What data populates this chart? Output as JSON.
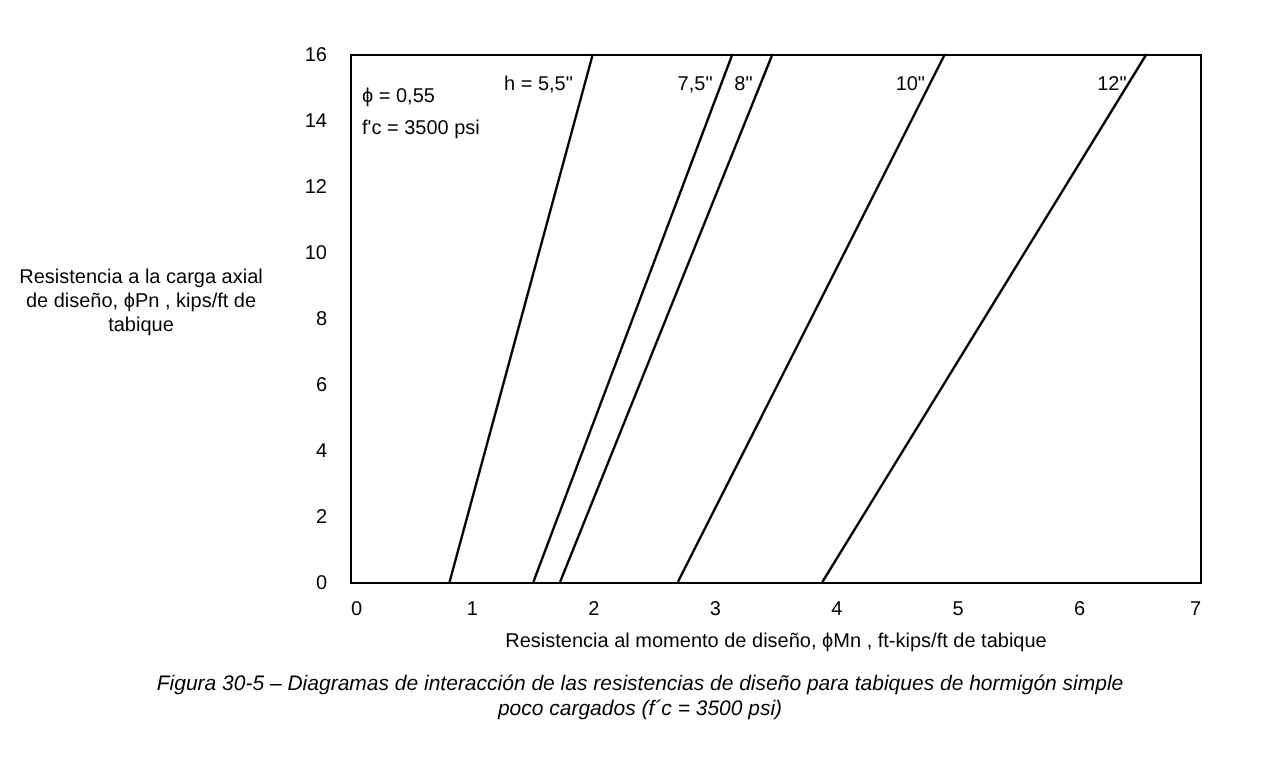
{
  "chart_data": {
    "type": "line",
    "xlabel": "Resistencia al momento de diseño, ϕMn , ft-kips/ft de tabique",
    "ylabel": "Resistencia a la carga axial de diseño, ϕPn , kips/ft de tabique",
    "title": "Figura 30-5 – Diagramas de interacción de las resistencias de diseño para tabiques de hormigón simple poco cargados (f´c = 3500 psi)",
    "annotations": [
      "ϕ = 0,55",
      "f'c = 3500 psi"
    ],
    "series": [
      {
        "name": "h = 5,5\"",
        "color": "#000000",
        "x": [
          0.82,
          2.0
        ],
        "values": [
          0,
          16
        ]
      },
      {
        "name": "7,5\"",
        "color": "#000000",
        "x": [
          1.51,
          3.15
        ],
        "values": [
          0,
          16
        ]
      },
      {
        "name": "8\"",
        "color": "#000000",
        "x": [
          1.73,
          3.48
        ],
        "values": [
          0,
          16
        ]
      },
      {
        "name": "10\"",
        "color": "#000000",
        "x": [
          2.7,
          4.9
        ],
        "values": [
          0,
          16
        ]
      },
      {
        "name": "12\"",
        "color": "#000000",
        "x": [
          3.89,
          6.56
        ],
        "values": [
          0,
          16
        ]
      }
    ],
    "xlim": [
      0,
      7
    ],
    "xticks": [
      0,
      1,
      2,
      3,
      4,
      5,
      6,
      7
    ],
    "ylim": [
      0,
      16
    ],
    "yticks": [
      0,
      2,
      4,
      6,
      8,
      10,
      12,
      14,
      16
    ],
    "grid": false,
    "marker": "none",
    "line_style": "solid"
  }
}
